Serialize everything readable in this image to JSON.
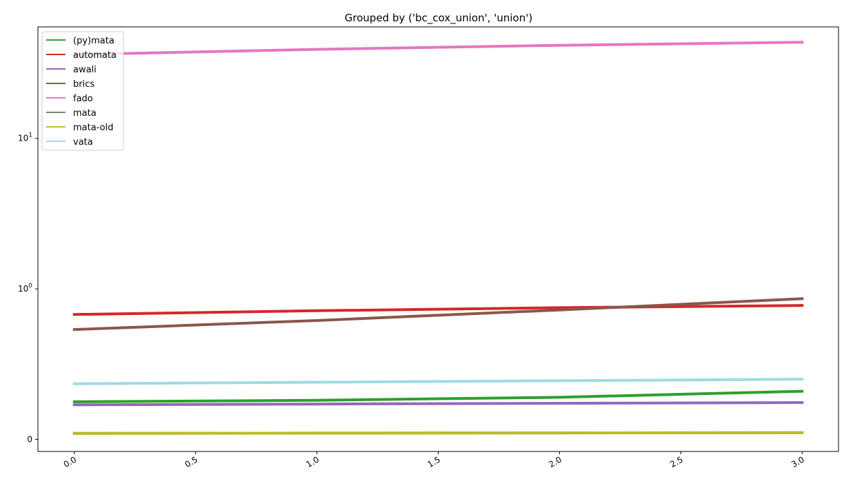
{
  "chart_data": {
    "type": "line",
    "title": "Grouped by ('bc_cox_union', 'union')",
    "xlabel": "",
    "ylabel": "",
    "xlim": [
      -0.15,
      3.15
    ],
    "yscale": "symlog",
    "ylim": [
      -0.08,
      55
    ],
    "grid": false,
    "legend_position": "upper-left",
    "x_ticks": [
      {
        "value": 0.0,
        "label": "0.0"
      },
      {
        "value": 0.5,
        "label": "0.5"
      },
      {
        "value": 1.0,
        "label": "1.0"
      },
      {
        "value": 1.5,
        "label": "1.5"
      },
      {
        "value": 2.0,
        "label": "2.0"
      },
      {
        "value": 2.5,
        "label": "2.5"
      },
      {
        "value": 3.0,
        "label": "3.0"
      }
    ],
    "y_ticks": [
      {
        "value": 0,
        "base": "0",
        "exp": ""
      },
      {
        "value": 1,
        "base": "10",
        "exp": "0"
      },
      {
        "value": 10,
        "base": "10",
        "exp": "1"
      }
    ],
    "x": [
      0,
      1,
      2,
      3
    ],
    "series": [
      {
        "name": "(py)mata",
        "color": "#2ca02c",
        "values": [
          0.25,
          0.26,
          0.28,
          0.32
        ]
      },
      {
        "name": "automata",
        "color": "#d62728",
        "values": [
          0.83,
          0.855,
          0.875,
          0.89
        ]
      },
      {
        "name": "awali",
        "color": "#9467bd",
        "values": [
          0.23,
          0.235,
          0.24,
          0.245
        ]
      },
      {
        "name": "brics",
        "color": "#8c564b",
        "values": [
          0.73,
          0.79,
          0.86,
          0.935
        ]
      },
      {
        "name": "fado",
        "color": "#e377c2",
        "values": [
          36.0,
          39.0,
          41.5,
          43.5
        ]
      },
      {
        "name": "mata",
        "color": "#7f7f7f",
        "values": [
          0.04,
          0.042,
          0.043,
          0.045
        ]
      },
      {
        "name": "mata-old",
        "color": "#bcbd22",
        "values": [
          0.04,
          0.042,
          0.043,
          0.045
        ]
      },
      {
        "name": "vata",
        "color": "#9edae5",
        "values": [
          0.37,
          0.38,
          0.39,
          0.4
        ]
      }
    ]
  }
}
